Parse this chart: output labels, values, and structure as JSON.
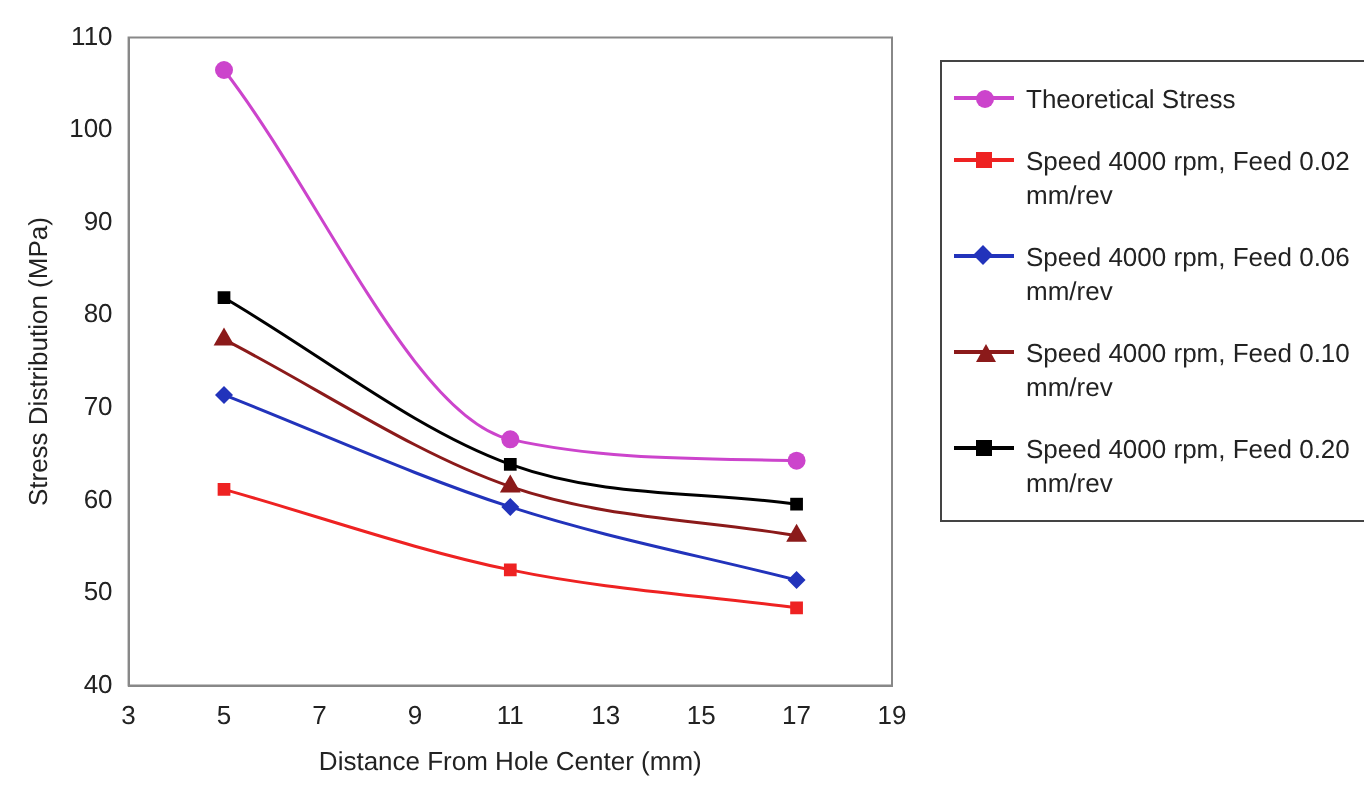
{
  "chart_data": {
    "type": "line",
    "xlabel": "Distance From Hole Center (mm)",
    "ylabel": "Stress Distribution (MPa)",
    "x": [
      5,
      11,
      17
    ],
    "xlim": [
      3,
      19
    ],
    "xticks": [
      3,
      5,
      7,
      9,
      11,
      13,
      15,
      17,
      19
    ],
    "ylim": [
      40,
      110
    ],
    "yticks": [
      40,
      50,
      60,
      70,
      80,
      90,
      100,
      110
    ],
    "grid": false,
    "legend": "right",
    "series": [
      {
        "name": "Theoretical Stress",
        "color": "#cc44cc",
        "marker": "circle",
        "values": [
          106.5,
          66.6,
          64.3
        ]
      },
      {
        "name": "Speed 4000 rpm, Feed 0.02 mm/rev",
        "color": "#ee2222",
        "marker": "square",
        "values": [
          61.2,
          52.5,
          48.4
        ]
      },
      {
        "name": "Speed 4000 rpm, Feed 0.06 mm/rev",
        "color": "#2233bb",
        "marker": "diamond",
        "values": [
          71.4,
          59.3,
          51.4
        ]
      },
      {
        "name": "Speed 4000 rpm, Feed 0.10 mm/rev",
        "color": "#8b1a1a",
        "marker": "triangle",
        "values": [
          77.4,
          61.5,
          56.2
        ]
      },
      {
        "name": "Speed 4000 rpm, Feed 0.20 mm/rev",
        "color": "#000000",
        "marker": "square",
        "values": [
          81.9,
          63.9,
          59.6
        ]
      }
    ]
  }
}
